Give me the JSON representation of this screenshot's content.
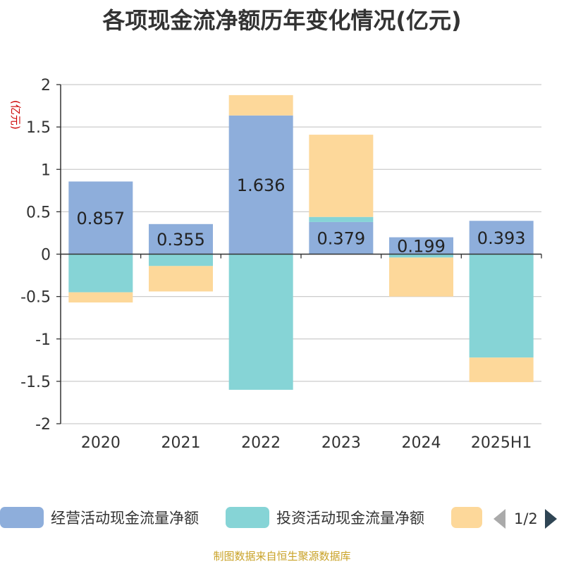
{
  "title": "各项现金流净额历年变化情况(亿元)",
  "chart_data": {
    "type": "bar",
    "stacked": true,
    "categories": [
      "2020",
      "2021",
      "2022",
      "2023",
      "2024",
      "2025H1"
    ],
    "series": [
      {
        "name": "经营活动现金流量净额",
        "color": "#8eaedb",
        "values": [
          0.857,
          0.355,
          1.636,
          0.379,
          0.199,
          0.393
        ],
        "show_labels": true
      },
      {
        "name": "投资活动现金流量净额",
        "color": "#86d4d6",
        "values": [
          -0.45,
          -0.14,
          -1.6,
          0.06,
          -0.04,
          -1.22
        ],
        "show_labels": false
      },
      {
        "name": "",
        "color": "#fdd89a",
        "values": [
          -0.12,
          -0.3,
          0.24,
          0.97,
          -0.46,
          -0.29
        ],
        "show_labels": false
      }
    ],
    "data_labels": [
      "0.857",
      "0.355",
      "1.636",
      "0.379",
      "0.199",
      "0.393"
    ],
    "ylabel": "(亿元)",
    "ylim": [
      -2,
      2
    ],
    "yticks": [
      2,
      1.5,
      1,
      0.5,
      0,
      -0.5,
      -1,
      -1.5,
      -2
    ],
    "ytick_labels": [
      "2",
      "1.5",
      "1",
      "0.5",
      "0",
      "-0.5",
      "-1",
      "-1.5",
      "-2"
    ],
    "grid": true,
    "legend_position": "bottom"
  },
  "legend": {
    "items": [
      "经营活动现金流量净额",
      "投资活动现金流量净额",
      ""
    ],
    "page_indicator": "1/2"
  },
  "source": "制图数据来自恒生聚源数据库",
  "ylabel_color": "#cc0000"
}
